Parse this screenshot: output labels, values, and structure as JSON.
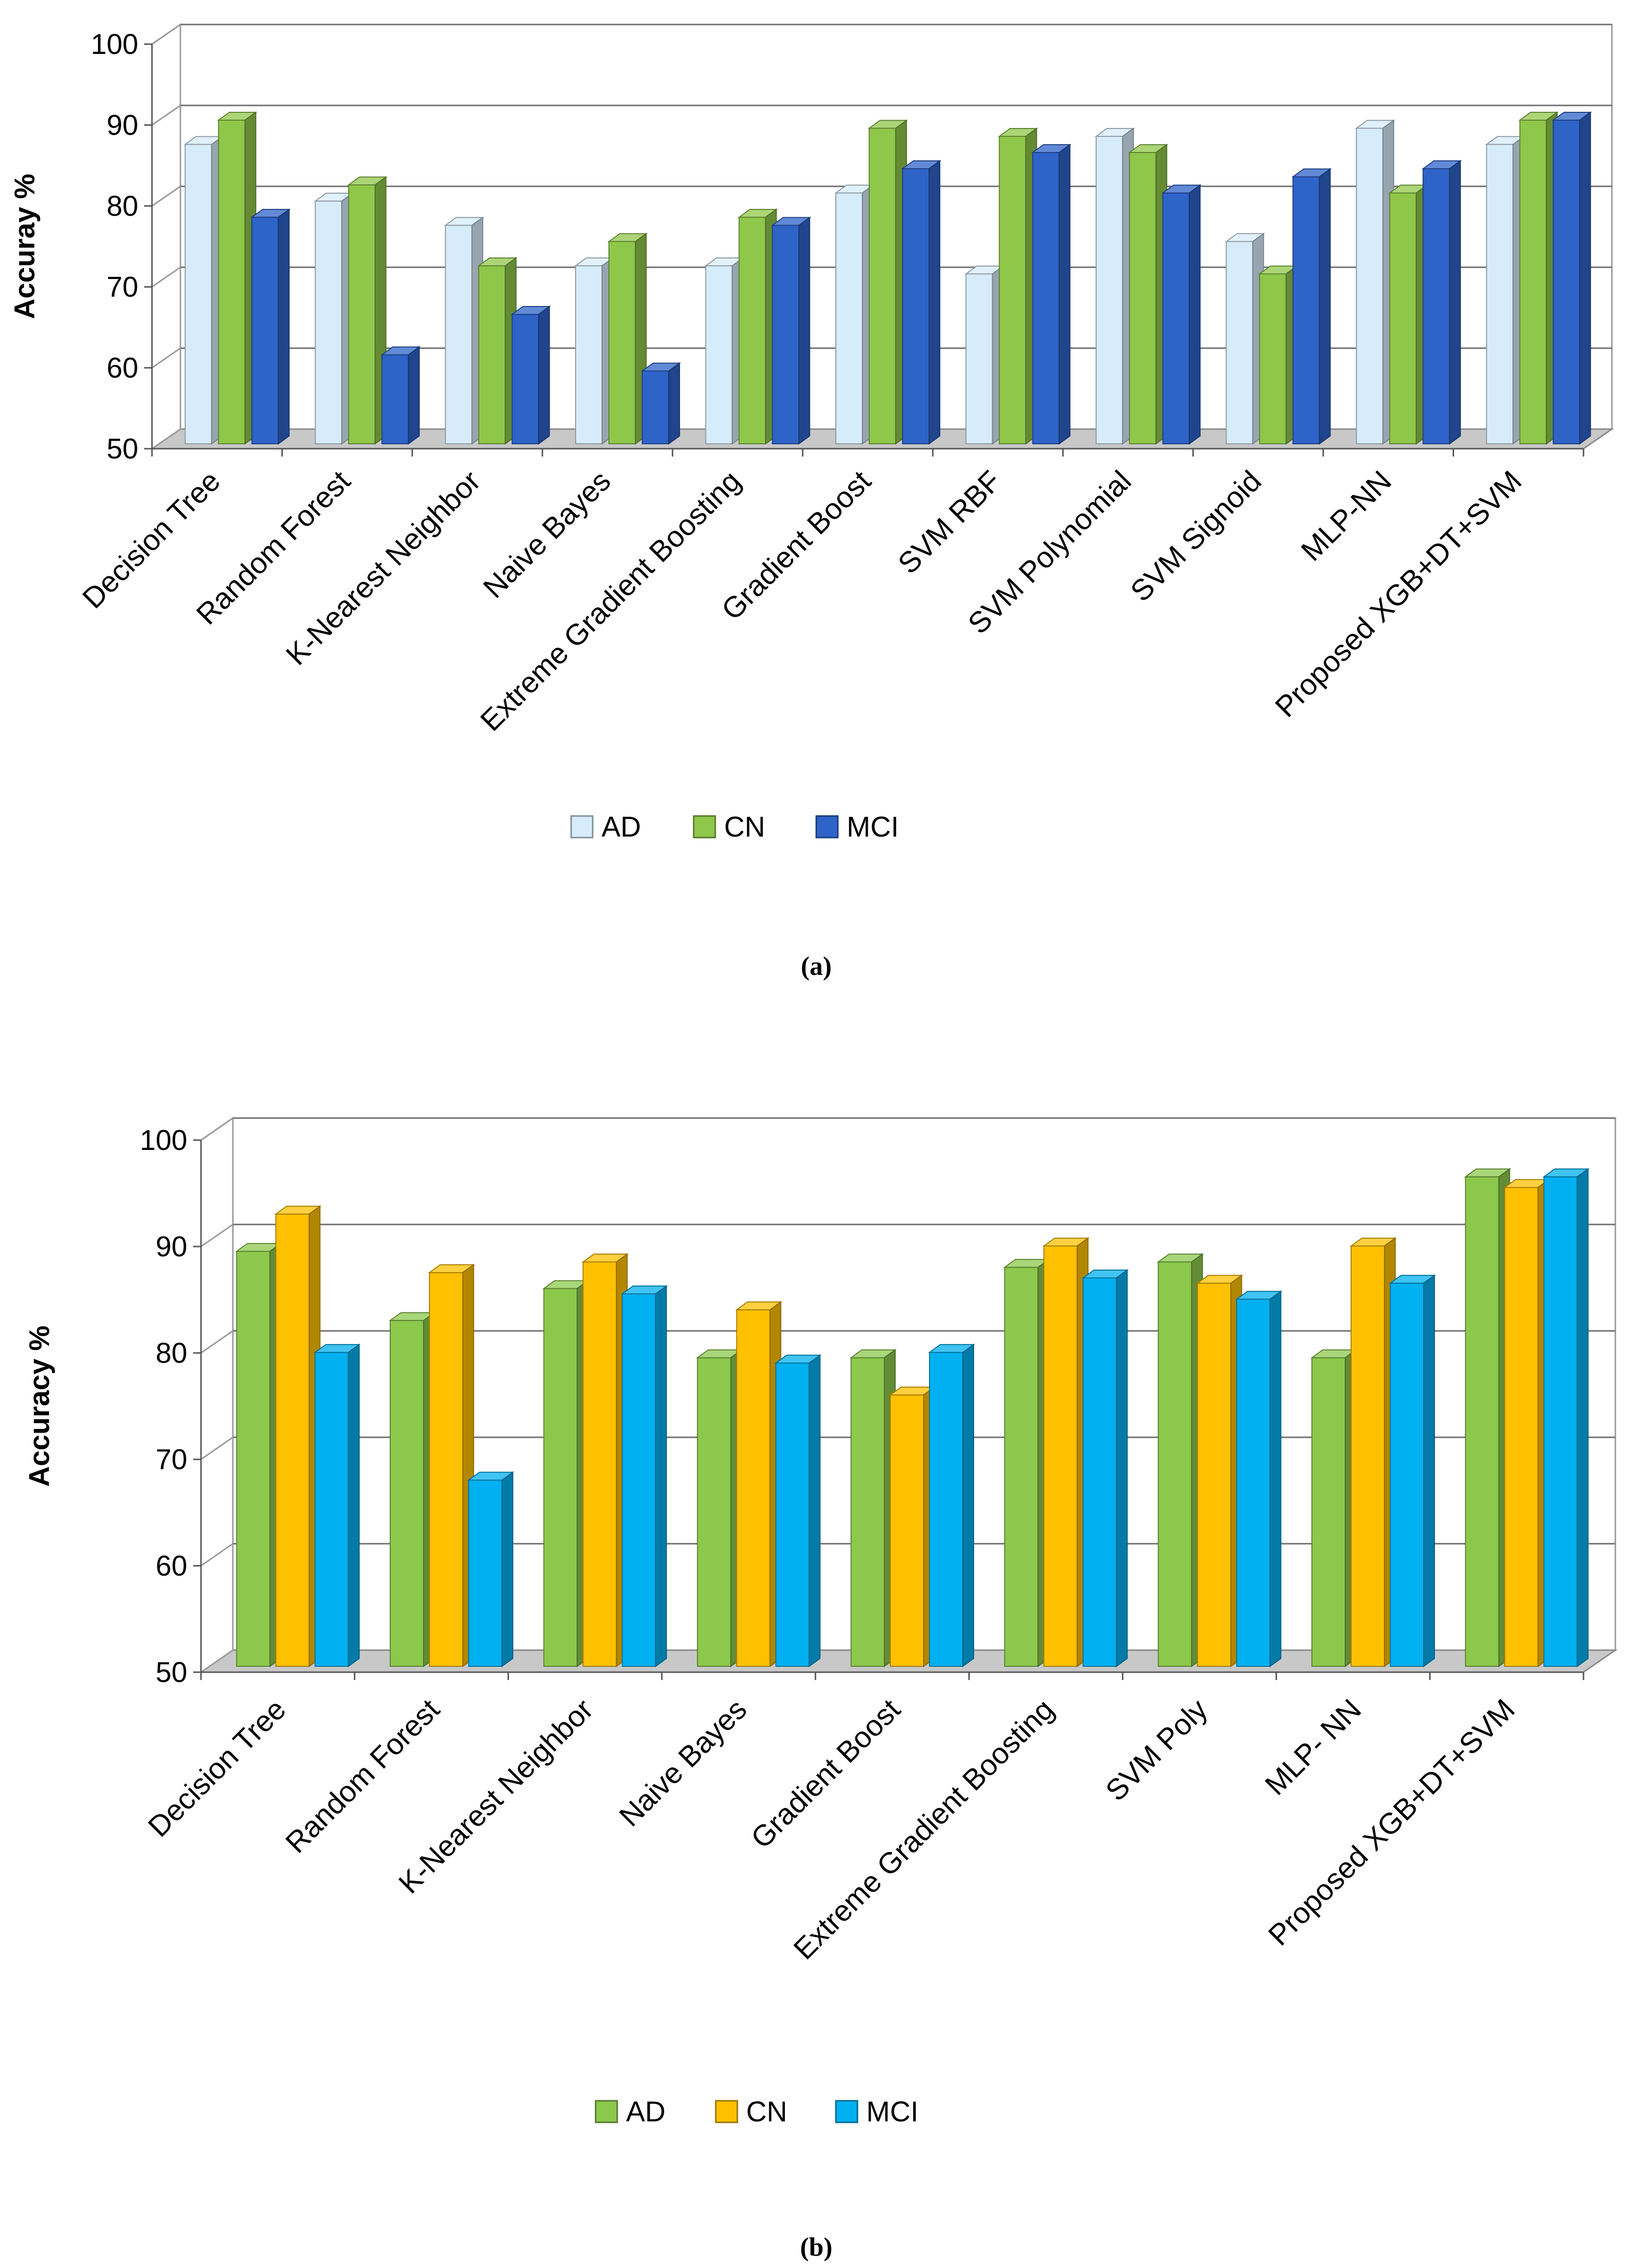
{
  "chart_data": [
    {
      "type": "bar",
      "caption": "(a)",
      "ylabel": "Accuray %",
      "xlabel": "",
      "ylim": [
        50,
        100
      ],
      "yticks": [
        "50",
        "60",
        "70",
        "80",
        "90",
        "100"
      ],
      "categories": [
        "Decision Tree",
        "Random Forest",
        "K-Nearest Neighbor",
        "Naive Bayes",
        "Extreme Gradient Boosting",
        "Gradient Boost",
        "SVM RBF",
        "SVM Polynomial",
        "SVM Signoid",
        "MLP-NN",
        "Proposed XGB+DT+SVM"
      ],
      "series": [
        {
          "name": "AD",
          "color": "#d7ecfb",
          "values": [
            87,
            80,
            77,
            72,
            72,
            81,
            71,
            88,
            75,
            89,
            87
          ]
        },
        {
          "name": "CN",
          "color": "#8fc74a",
          "values": [
            90,
            82,
            72,
            75,
            78,
            89,
            88,
            86,
            71,
            81,
            90
          ]
        },
        {
          "name": "MCI",
          "color": "#2e63c8",
          "values": [
            78,
            61,
            66,
            59,
            77,
            84,
            86,
            81,
            83,
            84,
            90
          ]
        }
      ],
      "legend_position": "bottom"
    },
    {
      "type": "bar",
      "caption": "(b)",
      "ylabel": "Accuracy %",
      "xlabel": "",
      "ylim": [
        50,
        100
      ],
      "yticks": [
        "50",
        "60",
        "70",
        "80",
        "90",
        "100"
      ],
      "categories": [
        "Decision Tree",
        "Random Forest",
        "K-Nearest Neighbor",
        "Naive Bayes",
        "Gradient Boost",
        "Extreme Gradient Boosting",
        "SVM Poly",
        "MLP- NN",
        "Proposed XGB+DT+SVM"
      ],
      "series": [
        {
          "name": "AD",
          "color": "#8cc84b",
          "values": [
            89,
            82.5,
            85.5,
            79,
            79,
            87.5,
            88,
            79,
            96
          ]
        },
        {
          "name": "CN",
          "color": "#ffc000",
          "values": [
            92.5,
            87,
            88,
            83.5,
            75.5,
            89.5,
            86,
            89.5,
            95
          ]
        },
        {
          "name": "MCI",
          "color": "#00b0f0",
          "values": [
            79.5,
            67.5,
            85,
            78.5,
            79.5,
            86.5,
            84.5,
            86,
            96
          ]
        }
      ],
      "legend_position": "bottom"
    }
  ]
}
